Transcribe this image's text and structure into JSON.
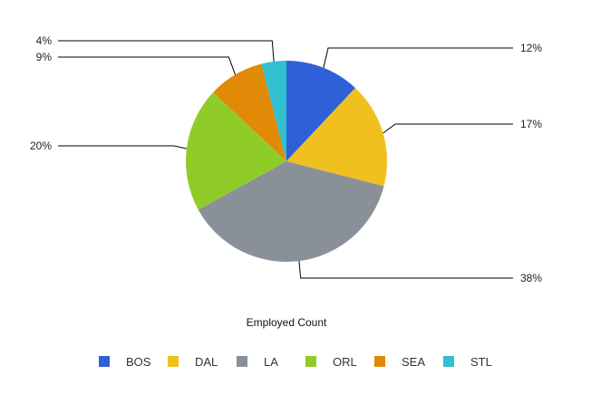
{
  "chart_data": {
    "type": "pie",
    "title": "Employed Count",
    "categories": [
      "BOS",
      "DAL",
      "LA",
      "ORL",
      "SEA",
      "STL"
    ],
    "values": [
      12,
      17,
      38,
      20,
      9,
      4
    ],
    "labels": [
      "12%",
      "17%",
      "38%",
      "20%",
      "9%",
      "4%"
    ],
    "colors": [
      "#3060d8",
      "#f0c020",
      "#8a9098",
      "#90cc28",
      "#e08a08",
      "#30c0d0"
    ],
    "legend_position": "bottom",
    "start_angle": "top",
    "direction": "clockwise"
  }
}
